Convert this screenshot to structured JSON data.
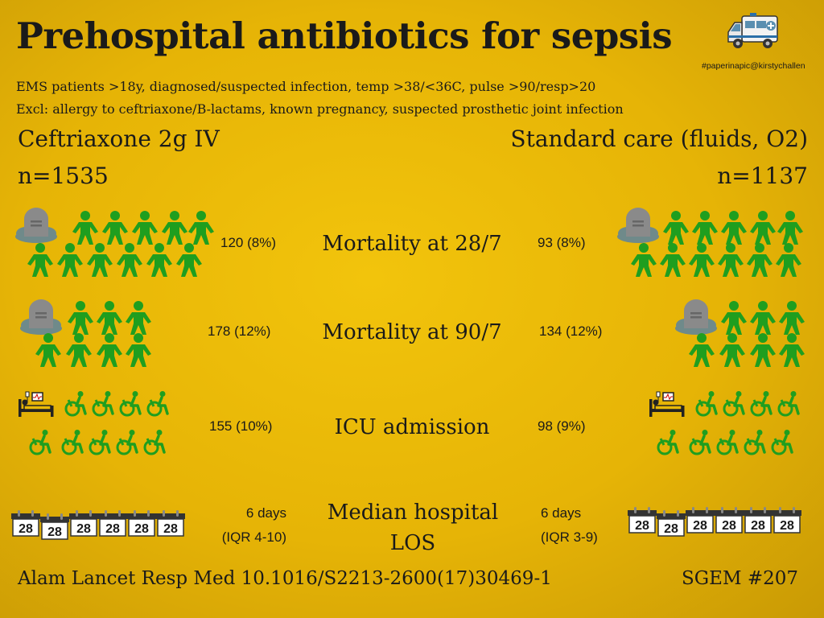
{
  "title": "Prehospital antibiotics for sepsis",
  "hashtag": "#paperinapic@kirstychallen",
  "inclusion": "EMS patients >18y, diagnosed/suspected infection, temp >38/<36C, pulse >90/resp>20",
  "exclusion": "Excl: allergy to ceftriaxone/B-lactams, known pregnancy, suspected prosthetic joint infection",
  "groups": {
    "left": {
      "name": "Ceftriaxone 2g IV",
      "n": "n=1535"
    },
    "right": {
      "name": "Standard care (fluids, O2)",
      "n": "n=1137"
    }
  },
  "outcomes": [
    {
      "label": "Mortality at 28/7",
      "left": "120 (8%)",
      "right": "93 (8%)"
    },
    {
      "label": "Mortality at 90/7",
      "left": "178 (12%)",
      "right": "134 (12%)"
    },
    {
      "label": "ICU admission",
      "left": "155 (10%)",
      "right": "98 (9%)"
    },
    {
      "label": "Median hospital LOS",
      "left_line1": "6 days",
      "left_line2": "(IQR 4-10)",
      "right_line1": "6 days",
      "right_line2": "(IQR 3-9)"
    }
  ],
  "calendar_label": "28",
  "footer": {
    "citation": "Alam Lancet Resp Med 10.1016/S2213-2600(17)30469-1",
    "sgem": "SGEM #207"
  },
  "colors": {
    "background": "#e8b908",
    "figure": "#1f9e1f",
    "text": "#1a1a1a",
    "headstone": "#8a8a8a",
    "cloud": "#6f8a8a"
  },
  "icons": [
    "ambulance-icon",
    "headstone-icon",
    "person-icon",
    "hospital-bed-icon",
    "wheelchair-icon",
    "calendar-icon"
  ]
}
